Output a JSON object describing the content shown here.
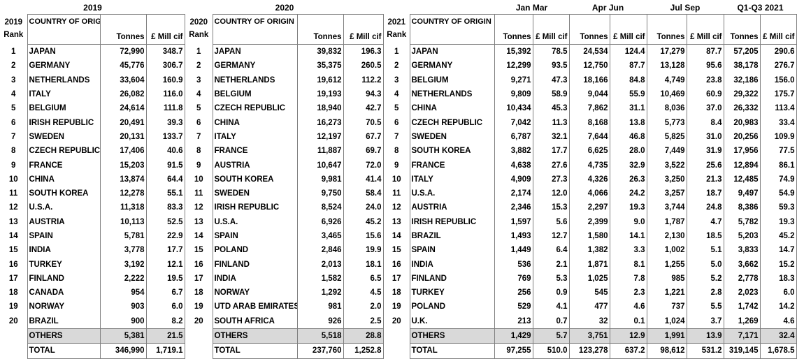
{
  "headers": {
    "y2019": "2019",
    "y2020": "2020",
    "y2021": "2021",
    "rank": "Rank",
    "country": "COUNTRY OF ORIGIN",
    "tonnes": "Tonnes",
    "mill": "£ Mill cif",
    "q1": "Jan Mar",
    "q2": "Apr Jun",
    "q3": "Jul Sep",
    "q4": "Q1-Q3 2021"
  },
  "t2019": {
    "rows": [
      [
        "1",
        "JAPAN",
        "72,990",
        "348.7"
      ],
      [
        "2",
        "GERMANY",
        "45,776",
        "306.7"
      ],
      [
        "3",
        "NETHERLANDS",
        "33,604",
        "160.9"
      ],
      [
        "4",
        "ITALY",
        "26,082",
        "116.0"
      ],
      [
        "5",
        "BELGIUM",
        "24,614",
        "111.8"
      ],
      [
        "6",
        "IRISH REPUBLIC",
        "20,491",
        "39.3"
      ],
      [
        "7",
        "SWEDEN",
        "20,131",
        "133.7"
      ],
      [
        "8",
        "CZECH REPUBLIC",
        "17,406",
        "40.6"
      ],
      [
        "9",
        "FRANCE",
        "15,203",
        "91.5"
      ],
      [
        "10",
        "CHINA",
        "13,874",
        "64.4"
      ],
      [
        "11",
        "SOUTH KOREA",
        "12,278",
        "55.1"
      ],
      [
        "12",
        "U.S.A.",
        "11,318",
        "83.3"
      ],
      [
        "13",
        "AUSTRIA",
        "10,113",
        "52.5"
      ],
      [
        "14",
        "SPAIN",
        "5,781",
        "22.9"
      ],
      [
        "15",
        "INDIA",
        "3,778",
        "17.7"
      ],
      [
        "16",
        "TURKEY",
        "3,192",
        "12.1"
      ],
      [
        "17",
        "FINLAND",
        "2,222",
        "19.5"
      ],
      [
        "18",
        "CANADA",
        "954",
        "6.7"
      ],
      [
        "19",
        "NORWAY",
        "903",
        "6.0"
      ],
      [
        "20",
        "BRAZIL",
        "900",
        "8.2"
      ]
    ],
    "others": [
      "OTHERS",
      "5,381",
      "21.5"
    ],
    "total": [
      "TOTAL",
      "346,990",
      "1,719.1"
    ]
  },
  "t2020": {
    "rows": [
      [
        "1",
        "JAPAN",
        "39,832",
        "196.3"
      ],
      [
        "2",
        "GERMANY",
        "35,375",
        "260.5"
      ],
      [
        "3",
        "NETHERLANDS",
        "19,612",
        "112.2"
      ],
      [
        "4",
        "BELGIUM",
        "19,193",
        "94.3"
      ],
      [
        "5",
        "CZECH REPUBLIC",
        "18,940",
        "42.7"
      ],
      [
        "6",
        "CHINA",
        "16,273",
        "70.5"
      ],
      [
        "7",
        "ITALY",
        "12,197",
        "67.7"
      ],
      [
        "8",
        "FRANCE",
        "11,887",
        "69.7"
      ],
      [
        "9",
        "AUSTRIA",
        "10,647",
        "72.0"
      ],
      [
        "10",
        "SOUTH KOREA",
        "9,981",
        "41.4"
      ],
      [
        "11",
        "SWEDEN",
        "9,750",
        "58.4"
      ],
      [
        "12",
        "IRISH REPUBLIC",
        "8,524",
        "24.0"
      ],
      [
        "13",
        "U.S.A.",
        "6,926",
        "45.2"
      ],
      [
        "14",
        "SPAIN",
        "3,465",
        "15.6"
      ],
      [
        "15",
        "POLAND",
        "2,846",
        "19.9"
      ],
      [
        "16",
        "FINLAND",
        "2,013",
        "18.1"
      ],
      [
        "17",
        "INDIA",
        "1,582",
        "6.5"
      ],
      [
        "18",
        "NORWAY",
        "1,292",
        "4.5"
      ],
      [
        "19",
        "UTD ARAB EMIRATES",
        "981",
        "2.0"
      ],
      [
        "20",
        "SOUTH AFRICA",
        "926",
        "2.5"
      ]
    ],
    "others": [
      "OTHERS",
      "5,518",
      "28.8"
    ],
    "total": [
      "TOTAL",
      "237,760",
      "1,252.8"
    ]
  },
  "t2021": {
    "rows": [
      [
        "1",
        "JAPAN",
        "15,392",
        "78.5",
        "24,534",
        "124.4",
        "17,279",
        "87.7",
        "57,205",
        "290.6"
      ],
      [
        "2",
        "GERMANY",
        "12,299",
        "93.5",
        "12,750",
        "87.7",
        "13,128",
        "95.6",
        "38,178",
        "276.7"
      ],
      [
        "3",
        "BELGIUM",
        "9,271",
        "47.3",
        "18,166",
        "84.8",
        "4,749",
        "23.8",
        "32,186",
        "156.0"
      ],
      [
        "4",
        "NETHERLANDS",
        "9,809",
        "58.9",
        "9,044",
        "55.9",
        "10,469",
        "60.9",
        "29,322",
        "175.7"
      ],
      [
        "5",
        "CHINA",
        "10,434",
        "45.3",
        "7,862",
        "31.1",
        "8,036",
        "37.0",
        "26,332",
        "113.4"
      ],
      [
        "6",
        "CZECH REPUBLIC",
        "7,042",
        "11.3",
        "8,168",
        "13.8",
        "5,773",
        "8.4",
        "20,983",
        "33.4"
      ],
      [
        "7",
        "SWEDEN",
        "6,787",
        "32.1",
        "7,644",
        "46.8",
        "5,825",
        "31.0",
        "20,256",
        "109.9"
      ],
      [
        "8",
        "SOUTH KOREA",
        "3,882",
        "17.7",
        "6,625",
        "28.0",
        "7,449",
        "31.9",
        "17,956",
        "77.5"
      ],
      [
        "9",
        "FRANCE",
        "4,638",
        "27.6",
        "4,735",
        "32.9",
        "3,522",
        "25.6",
        "12,894",
        "86.1"
      ],
      [
        "10",
        "ITALY",
        "4,909",
        "27.3",
        "4,326",
        "26.3",
        "3,250",
        "21.3",
        "12,485",
        "74.9"
      ],
      [
        "11",
        "U.S.A.",
        "2,174",
        "12.0",
        "4,066",
        "24.2",
        "3,257",
        "18.7",
        "9,497",
        "54.9"
      ],
      [
        "12",
        "AUSTRIA",
        "2,346",
        "15.3",
        "2,297",
        "19.3",
        "3,744",
        "24.8",
        "8,386",
        "59.3"
      ],
      [
        "13",
        "IRISH REPUBLIC",
        "1,597",
        "5.6",
        "2,399",
        "9.0",
        "1,787",
        "4.7",
        "5,782",
        "19.3"
      ],
      [
        "14",
        "BRAZIL",
        "1,493",
        "12.7",
        "1,580",
        "14.1",
        "2,130",
        "18.5",
        "5,203",
        "45.2"
      ],
      [
        "15",
        "SPAIN",
        "1,449",
        "6.4",
        "1,382",
        "3.3",
        "1,002",
        "5.1",
        "3,833",
        "14.7"
      ],
      [
        "16",
        "INDIA",
        "536",
        "2.1",
        "1,871",
        "8.1",
        "1,255",
        "5.0",
        "3,662",
        "15.2"
      ],
      [
        "17",
        "FINLAND",
        "769",
        "5.3",
        "1,025",
        "7.8",
        "985",
        "5.2",
        "2,778",
        "18.3"
      ],
      [
        "18",
        "TURKEY",
        "256",
        "0.9",
        "545",
        "2.3",
        "1,221",
        "2.8",
        "2,023",
        "6.0"
      ],
      [
        "19",
        "POLAND",
        "529",
        "4.1",
        "477",
        "4.6",
        "737",
        "5.5",
        "1,742",
        "14.2"
      ],
      [
        "20",
        "U.K.",
        "213",
        "0.7",
        "32",
        "0.1",
        "1,024",
        "3.7",
        "1,269",
        "4.6"
      ]
    ],
    "others": [
      "OTHERS",
      "1,429",
      "5.7",
      "3,751",
      "12.9",
      "1,991",
      "13.9",
      "7,171",
      "32.4"
    ],
    "total": [
      "TOTAL",
      "97,255",
      "510.0",
      "123,278",
      "637.2",
      "98,612",
      "531.2",
      "319,145",
      "1,678.5"
    ]
  }
}
